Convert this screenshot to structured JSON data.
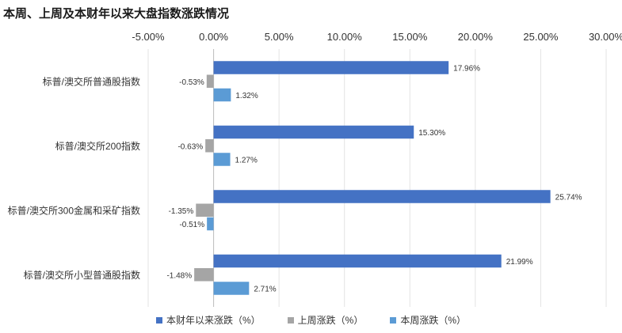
{
  "chart_data": {
    "type": "bar",
    "orientation": "horizontal",
    "title": "本周、上周及本财年以来大盘指数涨跌情况",
    "categories": [
      "标普/澳交所普通股指数",
      "标普/澳交所200指数",
      "标普/澳交所300金属和采矿指数",
      "标普/澳交所小型普通股指数"
    ],
    "series": [
      {
        "name": "本财年以来涨跌（%）",
        "color": "#4472C4",
        "values": [
          17.96,
          15.3,
          25.74,
          21.99
        ],
        "labels": [
          "17.96%",
          "15.30%",
          "25.74%",
          "21.99%"
        ]
      },
      {
        "name": "上周涨跌（%）",
        "color": "#A5A5A5",
        "values": [
          -0.53,
          -0.63,
          -1.35,
          -1.48
        ],
        "labels": [
          "-0.53%",
          "-0.63%",
          "-1.35%",
          "-1.48%"
        ]
      },
      {
        "name": "本周涨跌（%）",
        "color": "#5B9BD5",
        "values": [
          1.32,
          1.27,
          -0.51,
          2.71
        ],
        "labels": [
          "1.32%",
          "1.27%",
          "-0.51%",
          "2.71%"
        ]
      }
    ],
    "xlim": [
      -5,
      30
    ],
    "x_ticks": [
      -5,
      0,
      5,
      10,
      15,
      20,
      25,
      30
    ],
    "x_tick_labels": [
      "-5.00%",
      "0.00%",
      "5.00%",
      "10.00%",
      "15.00%",
      "20.00%",
      "25.00%",
      "30.00%"
    ],
    "xlabel": "",
    "ylabel": "",
    "grid": true,
    "axis_position": "top",
    "legend_position": "bottom"
  }
}
